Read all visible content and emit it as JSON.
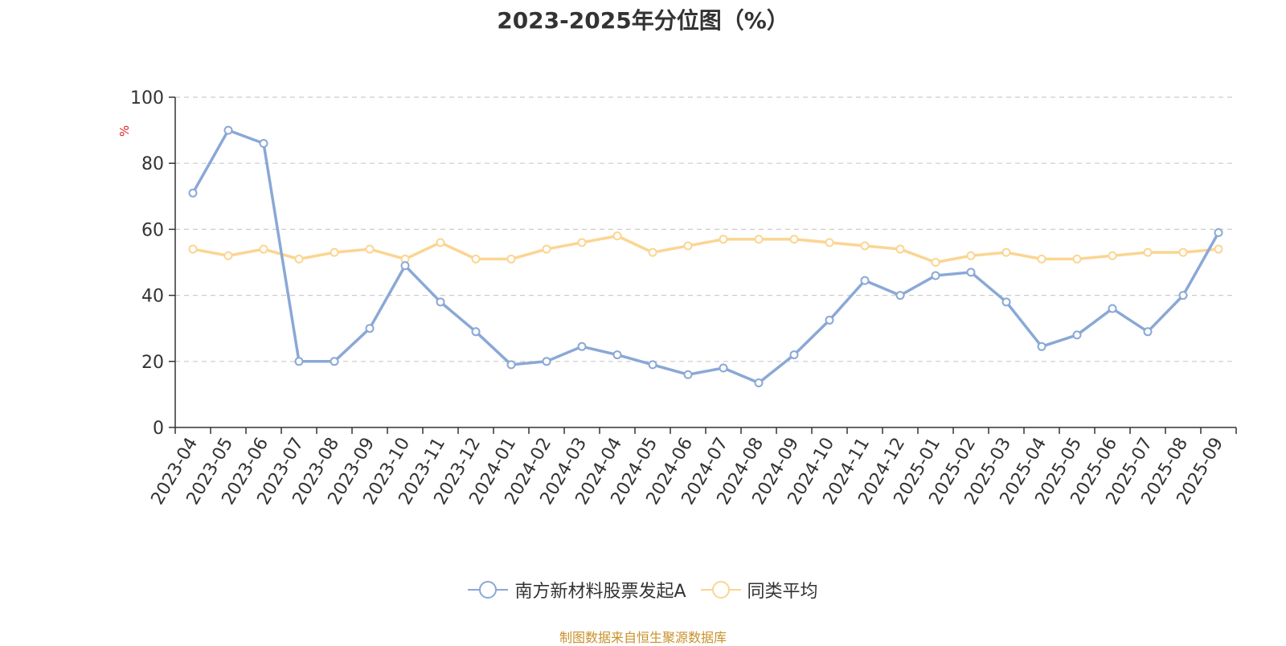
{
  "chart_data": {
    "type": "line",
    "title": "2023-2025年分位图（%）",
    "ylabel": "%",
    "xlabel": "",
    "ylim": [
      0,
      100
    ],
    "yticks": [
      0,
      20,
      40,
      60,
      80,
      100
    ],
    "grid": true,
    "legend_position": "bottom-center",
    "categories": [
      "2023-04",
      "2023-05",
      "2023-06",
      "2023-07",
      "2023-08",
      "2023-09",
      "2023-10",
      "2023-11",
      "2023-12",
      "2024-01",
      "2024-02",
      "2024-03",
      "2024-04",
      "2024-05",
      "2024-06",
      "2024-07",
      "2024-08",
      "2024-09",
      "2024-10",
      "2024-11",
      "2024-12",
      "2025-01",
      "2025-02",
      "2025-03",
      "2025-04",
      "2025-05",
      "2025-06",
      "2025-07",
      "2025-08",
      "2025-09"
    ],
    "series": [
      {
        "name": "南方新材料股票发起A",
        "color": "#8aa8d6",
        "values": [
          71,
          90,
          86,
          20,
          20,
          30,
          49,
          38,
          29,
          19,
          20,
          24.5,
          22,
          19,
          16,
          18,
          13.5,
          22,
          32.5,
          44.5,
          40,
          46,
          47,
          38,
          24.5,
          28,
          36,
          29,
          40,
          59
        ]
      },
      {
        "name": "同类平均",
        "color": "#fbd592",
        "values": [
          54,
          52,
          54,
          51,
          53,
          54,
          51,
          56,
          51,
          51,
          54,
          56,
          58,
          53,
          55,
          57,
          57,
          57,
          56,
          55,
          54,
          50,
          52,
          53,
          51,
          51,
          52,
          53,
          53,
          54
        ]
      }
    ]
  },
  "source": "制图数据来自恒生聚源数据库"
}
